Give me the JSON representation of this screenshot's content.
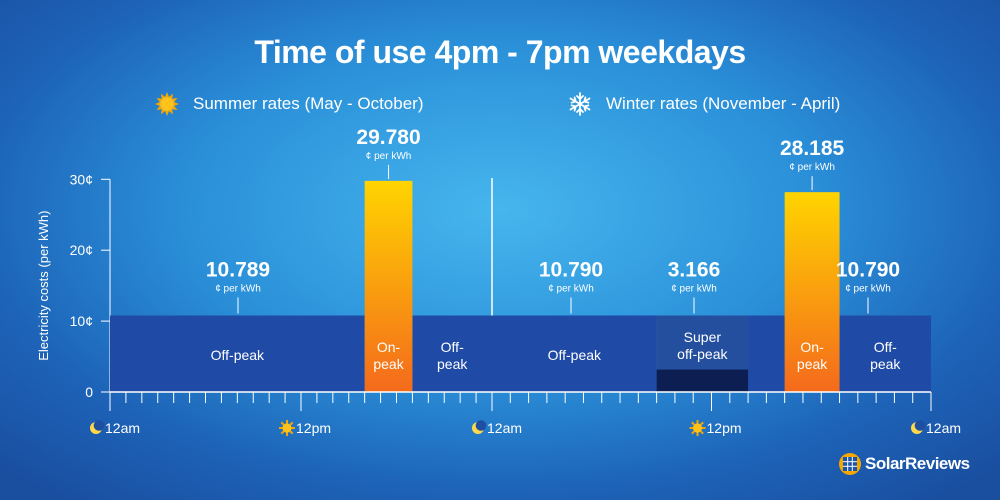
{
  "chart_data": {
    "type": "bar",
    "title": "Time of use 4pm - 7pm weekdays",
    "ylabel": "Electricity costs (per kWh)",
    "ylim": [
      0,
      30
    ],
    "yticks": [
      "0",
      "10¢",
      "20¢",
      "30¢"
    ],
    "unit_label": "¢ per kWh",
    "colors": {
      "offpeak_bar": "#1f4aa6",
      "onpeak_top": "#ffd400",
      "onpeak_bottom": "#f46a1c",
      "superoff_bar": "#0d1f52",
      "superoff_panel": "#244f9e"
    },
    "series": [
      {
        "name": "Summer rates (May - October)",
        "x_labels": [
          "12am",
          "12pm",
          "12am"
        ],
        "segments": [
          {
            "label": "Off-peak",
            "start_hour": 0,
            "end_hour": 16,
            "value": 10.789,
            "value_label": "10.789",
            "kind": "offpeak"
          },
          {
            "label": "On-peak",
            "start_hour": 16,
            "end_hour": 19,
            "value": 29.78,
            "value_label": "29.780",
            "kind": "onpeak"
          },
          {
            "label": "Off-peak",
            "start_hour": 19,
            "end_hour": 24,
            "value": 10.789,
            "kind": "offpeak"
          }
        ]
      },
      {
        "name": "Winter rates (November - April)",
        "x_labels": [
          "12am",
          "12pm",
          "12am"
        ],
        "segments": [
          {
            "label": "Off-peak",
            "start_hour": 0,
            "end_hour": 9,
            "value": 10.79,
            "value_label": "10.790",
            "kind": "offpeak"
          },
          {
            "label": "Super off-peak",
            "start_hour": 9,
            "end_hour": 14,
            "value": 3.166,
            "value_label": "3.166",
            "kind": "superoff"
          },
          {
            "label": "Off-peak",
            "start_hour": 14,
            "end_hour": 16,
            "value": 10.79,
            "kind": "offpeak"
          },
          {
            "label": "On-peak",
            "start_hour": 16,
            "end_hour": 19,
            "value": 28.185,
            "value_label": "28.185",
            "kind": "onpeak"
          },
          {
            "label": "Off-peak",
            "start_hour": 19,
            "end_hour": 24,
            "value": 10.79,
            "value_label": "10.790",
            "kind": "offpeak"
          }
        ]
      }
    ]
  },
  "legend": {
    "summer": {
      "label": "Summer rates (May - October)",
      "icon": "sun-icon"
    },
    "winter": {
      "label": "Winter rates (November - April)",
      "icon": "snowflake-icon"
    }
  },
  "brand": {
    "name": "SolarReviews",
    "icon": "solar-panel-logo-icon"
  }
}
